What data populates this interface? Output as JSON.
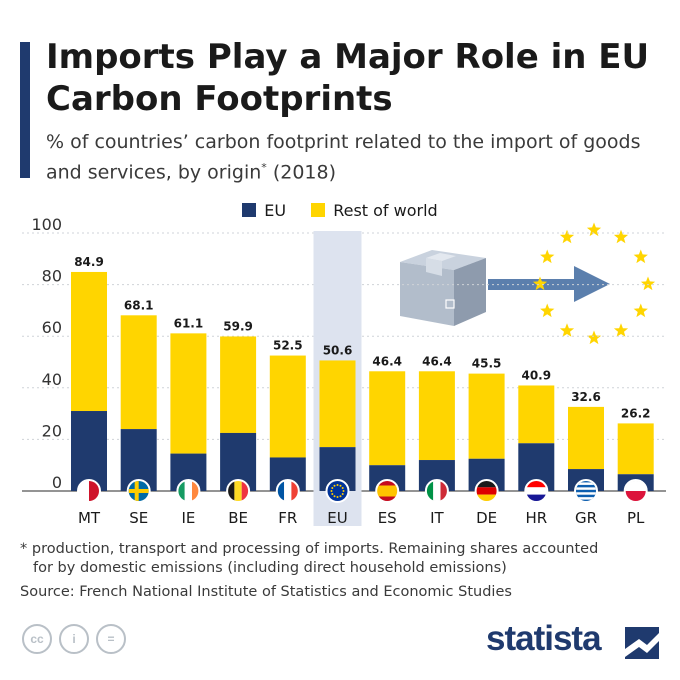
{
  "title": "Imports Play a Major Role in EU Carbon Footprints",
  "subtitle": "% of countries’ carbon footprint related to the import of goods and services, by origin",
  "subtitle_marker": "*",
  "subtitle_year": "(2018)",
  "colors": {
    "eu": "#1f3a6e",
    "rest_of_world": "#ffd500",
    "highlight": "#dde3ef",
    "accent": "#1f3a6e"
  },
  "chart_data": {
    "type": "bar",
    "stacked": true,
    "categories": [
      "MT",
      "SE",
      "IE",
      "BE",
      "FR",
      "EU",
      "ES",
      "IT",
      "DE",
      "HR",
      "GR",
      "PL"
    ],
    "series": [
      {
        "name": "EU",
        "values": [
          31,
          24,
          14.5,
          22.5,
          13,
          17,
          10,
          12,
          12.5,
          18.5,
          8.5,
          6.5
        ]
      },
      {
        "name": "Rest of world",
        "values": [
          53.9,
          44.1,
          46.6,
          37.4,
          39.5,
          33.6,
          36.4,
          34.4,
          33,
          22.4,
          24.1,
          19.7
        ]
      }
    ],
    "totals": [
      "84.9",
      "68.1",
      "61.1",
      "59.9",
      "52.5",
      "50.6",
      "46.4",
      "46.4",
      "45.5",
      "40.9",
      "32.6",
      "26.2"
    ],
    "highlighted_category": "EU",
    "ylim": [
      0,
      100
    ],
    "yticks": [
      "0",
      "20",
      "40",
      "60",
      "80",
      "100"
    ],
    "legend_position": "top-center",
    "grid": true
  },
  "footnote_line1": "* production, transport and processing of imports. Remaining shares accounted",
  "footnote_line2": "for by domestic emissions (including direct household emissions)",
  "source": "Source: French National Institute of Statistics and Economic Studies",
  "license_icons": [
    "cc",
    "i",
    "="
  ],
  "brand": "statista"
}
